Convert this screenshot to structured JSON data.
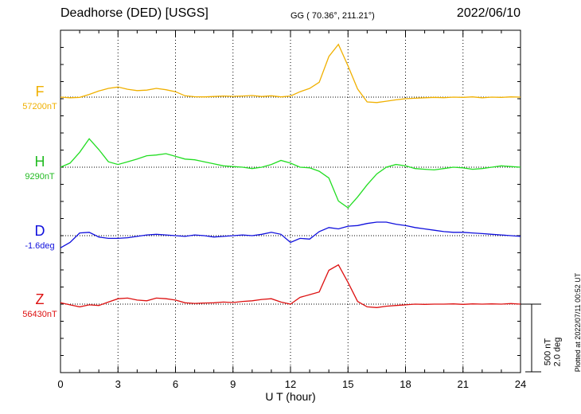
{
  "header": {
    "station": "Deadhorse (DED)  [USGS]",
    "coords": "GG ( 70.36°, 211.21°)",
    "date": "2022/06/10"
  },
  "colors": {
    "F": "#f0b000",
    "H": "#22dd22",
    "D": "#1010dd",
    "Z": "#dd1111"
  },
  "components": [
    {
      "key": "F",
      "label": "F",
      "baseline_text": "57200nT",
      "baseline": 57200,
      "unit": "nT"
    },
    {
      "key": "H",
      "label": "H",
      "baseline_text": "9290nT",
      "baseline": 9290,
      "unit": "nT"
    },
    {
      "key": "D",
      "label": "D",
      "baseline_text": "-1.6deg",
      "baseline": -1.6,
      "unit": "deg"
    },
    {
      "key": "Z",
      "label": "Z",
      "baseline_text": "56430nT",
      "baseline": 56430,
      "unit": "nT"
    }
  ],
  "scale_label": {
    "line1": "500 nT",
    "line2": "2.0 deg"
  },
  "plotted_note": "Plotted at 2022/07/11 00:52 UT",
  "chart_data": {
    "type": "line",
    "title": "Deadhorse (DED)  [USGS]",
    "xlabel": "U T (hour)",
    "ylabel": "",
    "xlim": [
      0,
      24
    ],
    "xticks": [
      0,
      3,
      6,
      9,
      12,
      15,
      18,
      21,
      24
    ],
    "grid": true,
    "scale": {
      "nT_per_bar": 500,
      "deg_per_bar": 2.0
    },
    "series": [
      {
        "name": "F",
        "unit": "nT",
        "baseline": 57200,
        "x": [
          0,
          0.5,
          1,
          1.5,
          2,
          2.5,
          3,
          3.5,
          4,
          4.5,
          5,
          5.5,
          6,
          6.5,
          7,
          7.5,
          8,
          8.5,
          9,
          9.5,
          10,
          10.5,
          11,
          11.5,
          12,
          12.5,
          13,
          13.5,
          14,
          14.5,
          15,
          15.5,
          16,
          16.5,
          17,
          17.5,
          18,
          18.5,
          19,
          19.5,
          20,
          20.5,
          21,
          21.5,
          22,
          22.5,
          23,
          23.5,
          24
        ],
        "values": [
          57200,
          57195,
          57198,
          57220,
          57245,
          57265,
          57275,
          57258,
          57248,
          57252,
          57265,
          57255,
          57240,
          57210,
          57203,
          57202,
          57205,
          57208,
          57206,
          57208,
          57212,
          57205,
          57210,
          57202,
          57208,
          57240,
          57265,
          57310,
          57500,
          57590,
          57430,
          57260,
          57165,
          57160,
          57170,
          57180,
          57188,
          57192,
          57195,
          57198,
          57196,
          57200,
          57198,
          57202,
          57195,
          57200,
          57198,
          57202,
          57200
        ]
      },
      {
        "name": "H",
        "unit": "nT",
        "baseline": 9290,
        "x": [
          0,
          0.5,
          1,
          1.5,
          2,
          2.5,
          3,
          3.5,
          4,
          4.5,
          5,
          5.5,
          6,
          6.5,
          7,
          7.5,
          8,
          8.5,
          9,
          9.5,
          10,
          10.5,
          11,
          11.5,
          12,
          12.5,
          13,
          13.5,
          14,
          14.5,
          15,
          15.5,
          16,
          16.5,
          17,
          17.5,
          18,
          18.5,
          19,
          19.5,
          20,
          20.5,
          21,
          21.5,
          22,
          22.5,
          23,
          23.5,
          24
        ],
        "values": [
          9290,
          9320,
          9400,
          9500,
          9420,
          9330,
          9310,
          9330,
          9350,
          9375,
          9380,
          9390,
          9370,
          9350,
          9345,
          9330,
          9315,
          9300,
          9295,
          9290,
          9280,
          9290,
          9310,
          9340,
          9320,
          9290,
          9285,
          9260,
          9210,
          9040,
          8990,
          9070,
          9160,
          9240,
          9290,
          9310,
          9300,
          9280,
          9275,
          9270,
          9280,
          9290,
          9285,
          9275,
          9280,
          9290,
          9300,
          9295,
          9290
        ]
      },
      {
        "name": "D",
        "unit": "deg",
        "baseline": -1.6,
        "x": [
          0,
          0.5,
          1,
          1.5,
          2,
          2.5,
          3,
          3.5,
          4,
          4.5,
          5,
          5.5,
          6,
          6.5,
          7,
          7.5,
          8,
          8.5,
          9,
          9.5,
          10,
          10.5,
          11,
          11.5,
          12,
          12.5,
          13,
          13.5,
          14,
          14.5,
          15,
          15.5,
          16,
          16.5,
          17,
          17.5,
          18,
          18.5,
          19,
          19.5,
          20,
          20.5,
          21,
          21.5,
          22,
          22.5,
          23,
          23.5,
          24
        ],
        "values": [
          -1.96,
          -1.8,
          -1.52,
          -1.5,
          -1.64,
          -1.68,
          -1.68,
          -1.66,
          -1.62,
          -1.58,
          -1.56,
          -1.58,
          -1.6,
          -1.62,
          -1.58,
          -1.6,
          -1.64,
          -1.62,
          -1.6,
          -1.58,
          -1.6,
          -1.56,
          -1.5,
          -1.56,
          -1.8,
          -1.68,
          -1.7,
          -1.48,
          -1.36,
          -1.4,
          -1.32,
          -1.3,
          -1.24,
          -1.2,
          -1.2,
          -1.26,
          -1.3,
          -1.36,
          -1.4,
          -1.44,
          -1.48,
          -1.5,
          -1.5,
          -1.52,
          -1.54,
          -1.56,
          -1.58,
          -1.6,
          -1.62
        ]
      },
      {
        "name": "Z",
        "unit": "nT",
        "baseline": 56430,
        "x": [
          0,
          0.5,
          1,
          1.5,
          2,
          2.5,
          3,
          3.5,
          4,
          4.5,
          5,
          5.5,
          6,
          6.5,
          7,
          7.5,
          8,
          8.5,
          9,
          9.5,
          10,
          10.5,
          11,
          11.5,
          12,
          12.5,
          13,
          13.5,
          14,
          14.5,
          15,
          15.5,
          16,
          16.5,
          17,
          17.5,
          18,
          18.5,
          19,
          19.5,
          20,
          20.5,
          21,
          21.5,
          22,
          22.5,
          23,
          23.5,
          24
        ],
        "values": [
          56440,
          56425,
          56410,
          56425,
          56420,
          56445,
          56470,
          56475,
          56460,
          56455,
          56475,
          56470,
          56460,
          56440,
          56435,
          56438,
          56440,
          56445,
          56442,
          56450,
          56455,
          56465,
          56470,
          56445,
          56430,
          56480,
          56500,
          56520,
          56680,
          56720,
          56590,
          56450,
          56410,
          56405,
          56415,
          56420,
          56425,
          56430,
          56428,
          56430,
          56430,
          56432,
          56428,
          56432,
          56430,
          56432,
          56430,
          56434,
          56430
        ]
      }
    ]
  }
}
